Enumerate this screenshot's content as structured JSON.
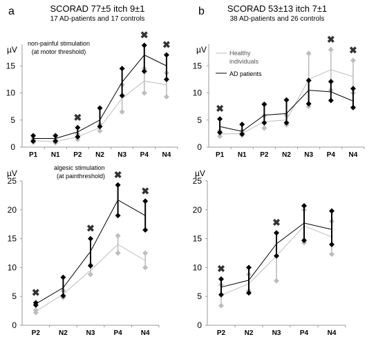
{
  "panel_a": {
    "letter": "a",
    "header": "SCORAD 77±5  itch 9±1",
    "subheader": "17 AD-patients and 17 controls"
  },
  "panel_b": {
    "letter": "b",
    "header": "SCORAD 53±13  itch 7±1",
    "subheader": "38 AD-patients and 26 controls"
  },
  "colors": {
    "patients": "#000000",
    "controls": "#bdbdbd",
    "axis": "#9a9a9a"
  },
  "chart_data": [
    {
      "type": "line",
      "panel": "a-top",
      "annotation": [
        "non-painful stimulation",
        "(at motor threshold)"
      ],
      "ylabel": "µV",
      "ylim": [
        0,
        19
      ],
      "yticks": [
        0,
        5,
        10,
        15
      ],
      "categories": [
        "P1",
        "N1",
        "P2",
        "N2",
        "N3",
        "P4",
        "N4"
      ],
      "series": [
        {
          "role": "patients",
          "values": [
            1.6,
            1.6,
            2.8,
            5.0,
            12.0,
            17.0,
            15.0
          ],
          "err_low": [
            1.1,
            1.1,
            1.9,
            3.8,
            9.5,
            14.0,
            12.5
          ],
          "err_high": [
            2.1,
            2.1,
            3.6,
            7.2,
            14.5,
            18.8,
            17.0
          ]
        },
        {
          "role": "controls",
          "values": [
            1.2,
            1.0,
            1.9,
            3.6,
            9.0,
            12.2,
            11.5
          ],
          "err_low": [
            0.9,
            0.8,
            1.4,
            3.0,
            6.5,
            10.0,
            9.3
          ],
          "err_high": [
            1.5,
            1.3,
            2.4,
            4.2,
            11.5,
            14.5,
            13.7
          ]
        }
      ],
      "significance_markers": [
        "P2",
        "P4",
        "N4"
      ]
    },
    {
      "type": "line",
      "panel": "b-top",
      "legend": [
        "Healthy individuals",
        "AD patients"
      ],
      "ylabel": "µV",
      "ylim": [
        0,
        19
      ],
      "yticks": [
        0,
        5,
        10,
        15
      ],
      "categories": [
        "P1",
        "N1",
        "P2",
        "N2",
        "N3",
        "P4",
        "N4"
      ],
      "series": [
        {
          "role": "patients",
          "values": [
            3.8,
            2.9,
            5.9,
            6.2,
            10.5,
            10.2,
            8.5
          ],
          "err_low": [
            2.7,
            2.4,
            4.5,
            4.5,
            8.0,
            8.6,
            7.3
          ],
          "err_high": [
            5.2,
            4.2,
            7.9,
            8.7,
            12.3,
            12.1,
            10.8
          ]
        },
        {
          "role": "controls",
          "values": [
            2.4,
            2.5,
            4.7,
            5.0,
            12.5,
            14.3,
            13.0
          ],
          "err_low": [
            2.0,
            2.2,
            3.5,
            4.1,
            7.5,
            10.5,
            10.0
          ],
          "err_high": [
            3.0,
            3.0,
            5.8,
            5.9,
            17.3,
            18.0,
            16.0
          ]
        }
      ],
      "significance_markers": [
        "P1",
        "P4",
        "N4"
      ]
    },
    {
      "type": "line",
      "panel": "a-bottom",
      "annotation": [
        "algesic stimulation",
        "(at painthreshold)"
      ],
      "ylabel": "µV",
      "ylim": [
        0,
        25
      ],
      "yticks": [
        0,
        5,
        10,
        15,
        20,
        25
      ],
      "categories": [
        "P2",
        "N2",
        "N3",
        "P4",
        "N4"
      ],
      "series": [
        {
          "role": "patients",
          "values": [
            3.7,
            6.5,
            12.8,
            21.7,
            19.0
          ],
          "err_low": [
            3.5,
            5.1,
            10.3,
            19.0,
            16.5
          ],
          "err_high": [
            3.9,
            8.3,
            15.0,
            24.3,
            21.5
          ]
        },
        {
          "role": "controls",
          "values": [
            2.4,
            5.4,
            9.5,
            14.0,
            11.2
          ],
          "err_low": [
            2.2,
            4.8,
            8.8,
            12.5,
            10.0
          ],
          "err_high": [
            2.6,
            6.0,
            10.5,
            15.5,
            12.5
          ]
        }
      ],
      "significance_markers": [
        "P2",
        "N3",
        "P4",
        "N4"
      ]
    },
    {
      "type": "line",
      "panel": "b-bottom",
      "ylabel": "µV",
      "ylim": [
        0,
        25
      ],
      "yticks": [
        0,
        5,
        10,
        15,
        20,
        25
      ],
      "categories": [
        "P2",
        "N2",
        "N3",
        "P4",
        "N4"
      ],
      "series": [
        {
          "role": "patients",
          "values": [
            6.6,
            7.8,
            14.1,
            17.7,
            16.6
          ],
          "err_low": [
            5.3,
            5.6,
            12.0,
            14.7,
            14.0
          ],
          "err_high": [
            8.0,
            10.0,
            16.0,
            20.7,
            19.8
          ]
        },
        {
          "role": "controls",
          "values": [
            5.2,
            7.2,
            12.0,
            17.2,
            15.3
          ],
          "err_low": [
            3.4,
            6.0,
            7.7,
            14.3,
            12.3
          ],
          "err_high": [
            7.0,
            8.8,
            16.0,
            20.0,
            18.0
          ]
        }
      ],
      "significance_markers": [
        "P2",
        "N3"
      ]
    }
  ]
}
